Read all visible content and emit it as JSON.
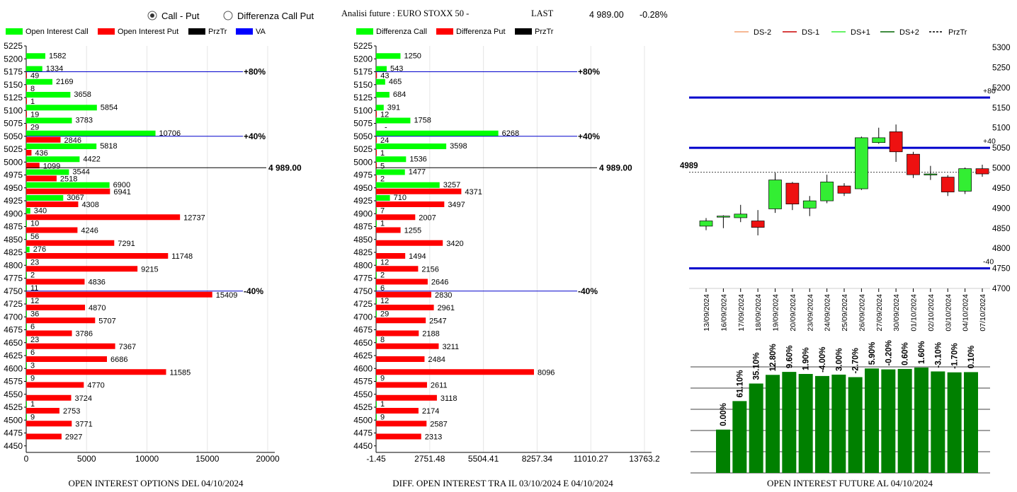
{
  "header": {
    "radio_call_put": "Call - Put",
    "radio_diff": "Differenza Call Put",
    "radio_selected": "call_put",
    "title": "Analisi future : EURO STOXX 50 -",
    "last_label": "LAST",
    "last_value": "4 989.00",
    "change": "-0.28%"
  },
  "colors": {
    "call": "#00ff00",
    "put": "#ff0000",
    "przTr": "#000000",
    "va": "#0000ff",
    "up_candle": "#33ee33",
    "down_candle": "#ee1111",
    "level_line": "#0000cc",
    "oi_future_bar": "#008000",
    "ds_minus2": "#f4a070",
    "ds_minus1": "#cc0000",
    "ds_plus1": "#33ee33",
    "ds_plus2": "#006600"
  },
  "legends": {
    "left": [
      "Open Interest Call",
      "Open Interest Put",
      "PrzTr",
      "VA"
    ],
    "middle": [
      "Differenza Call",
      "Differenza Put",
      "PrzTr"
    ],
    "right": [
      "DS-2",
      "DS-1",
      "DS+1",
      "DS+2",
      "PrzTr"
    ]
  },
  "footers": {
    "left": "OPEN INTEREST OPTIONS DEL 04/10/2024",
    "middle": "DIFF. OPEN INTEREST TRA IL 03/10/2024 E 04/10/2024",
    "right": "OPEN INTEREST FUTURE AL 04/10/2024"
  },
  "chart_data": [
    {
      "id": "oi_options",
      "type": "bar",
      "orientation": "horizontal",
      "title": "OPEN INTEREST OPTIONS DEL 04/10/2024",
      "categories": [
        "5225",
        "5200",
        "5175",
        "5150",
        "5125",
        "5100",
        "5075",
        "5050",
        "5025",
        "5000",
        "4975",
        "4950",
        "4925",
        "4900",
        "4875",
        "4850",
        "4825",
        "4800",
        "4775",
        "4750",
        "4725",
        "4700",
        "4675",
        "4650",
        "4625",
        "4600",
        "4575",
        "4550",
        "4525",
        "4500",
        "4475",
        "4450"
      ],
      "series": [
        {
          "name": "Open Interest Call",
          "values": [
            null,
            1582,
            1334,
            2169,
            3658,
            5854,
            3783,
            10706,
            5818,
            4422,
            3544,
            6900,
            3067,
            340,
            10,
            56,
            276,
            23,
            2,
            11,
            12,
            36,
            6,
            23,
            6,
            3,
            9,
            null,
            1,
            9,
            null,
            null
          ]
        },
        {
          "name": "Open Interest Put",
          "values": [
            null,
            null,
            49,
            8,
            1,
            19,
            29,
            2846,
            436,
            1099,
            2518,
            6941,
            4308,
            12737,
            4246,
            7291,
            11748,
            9215,
            4836,
            15409,
            4870,
            5707,
            3786,
            7367,
            6686,
            11585,
            4770,
            3724,
            2753,
            3771,
            2927,
            null
          ]
        }
      ],
      "xlim": [
        0,
        20000
      ],
      "x_ticks": [
        "0",
        "5000",
        "10000",
        "15000",
        "20000"
      ],
      "reference_lines": [
        {
          "label": "+80%",
          "level": "5175"
        },
        {
          "label": "+40%",
          "level": "5050"
        },
        {
          "label": "4 989.00",
          "level": 4989
        },
        {
          "label": "-40%",
          "level": "4750"
        }
      ]
    },
    {
      "id": "diff_oi",
      "type": "bar",
      "orientation": "horizontal",
      "title": "DIFF. OPEN INTEREST TRA IL 03/10/2024 E 04/10/2024",
      "categories": [
        "5225",
        "5200",
        "5175",
        "5150",
        "5125",
        "5100",
        "5075",
        "5050",
        "5025",
        "5000",
        "4975",
        "4950",
        "4925",
        "4900",
        "4875",
        "4850",
        "4825",
        "4800",
        "4775",
        "4750",
        "4725",
        "4700",
        "4675",
        "4650",
        "4625",
        "4600",
        "4575",
        "4550",
        "4525",
        "4500",
        "4475",
        "4450"
      ],
      "series": [
        {
          "name": "Differenza Call",
          "values": [
            null,
            1250,
            543,
            465,
            684,
            391,
            1758,
            6268,
            3598,
            1536,
            1477,
            3257,
            710,
            7,
            1,
            null,
            null,
            12,
            2,
            6,
            12,
            29,
            null,
            8,
            null,
            null,
            9,
            null,
            1,
            9,
            null,
            null
          ]
        },
        {
          "name": "Differenza Put",
          "values": [
            null,
            null,
            43,
            null,
            null,
            12,
            "-",
            24,
            1,
            5,
            2,
            4371,
            3497,
            2007,
            1255,
            3420,
            1494,
            2156,
            2646,
            2830,
            2961,
            2547,
            2188,
            3211,
            2484,
            8096,
            2611,
            3118,
            2174,
            2587,
            2313,
            null
          ]
        }
      ],
      "xlim": [
        -1.45,
        13763.2
      ],
      "x_ticks": [
        "-1.45",
        "2751.48",
        "5504.41",
        "8257.34",
        "11010.27",
        "13763.2"
      ],
      "reference_lines": [
        {
          "label": "+80%",
          "level": "5175"
        },
        {
          "label": "+40%",
          "level": "5050"
        },
        {
          "label": "4 989.00",
          "level": 4989
        },
        {
          "label": "-40%",
          "level": "4750"
        }
      ]
    },
    {
      "id": "candles",
      "type": "candlestick",
      "dates": [
        "13/09/2024",
        "16/09/2024",
        "17/09/2024",
        "18/09/2024",
        "19/09/2024",
        "20/09/2024",
        "23/09/2024",
        "24/09/2024",
        "25/09/2024",
        "26/09/2024",
        "27/09/2024",
        "30/09/2024",
        "01/10/2024",
        "02/10/2024",
        "03/10/2024",
        "04/10/2024",
        "07/10/2024"
      ],
      "ohlc": [
        [
          4855,
          4875,
          4845,
          4868
        ],
        [
          4878,
          4882,
          4850,
          4880
        ],
        [
          4876,
          4908,
          4865,
          4885
        ],
        [
          4868,
          4895,
          4832,
          4852
        ],
        [
          4898,
          4988,
          4888,
          4970
        ],
        [
          4962,
          4965,
          4895,
          4910
        ],
        [
          4900,
          4930,
          4880,
          4918
        ],
        [
          4918,
          4983,
          4912,
          4965
        ],
        [
          4955,
          4962,
          4930,
          4937
        ],
        [
          4948,
          5078,
          4945,
          5075
        ],
        [
          5063,
          5100,
          5060,
          5075
        ],
        [
          5090,
          5108,
          5015,
          5040
        ],
        [
          5034,
          5040,
          4975,
          4983
        ],
        [
          4985,
          5005,
          4970,
          4985
        ],
        [
          4977,
          4982,
          4930,
          4940
        ],
        [
          4942,
          5001,
          4935,
          4998
        ],
        [
          4998,
          5008,
          4978,
          4985
        ]
      ],
      "ylim": [
        4700,
        5300
      ],
      "y_ticks": [
        "5300",
        "5250",
        "5200",
        "5150",
        "5100",
        "5050",
        "5000",
        "4950",
        "4900",
        "4850",
        "4800",
        "4750",
        "4700"
      ],
      "levels": [
        {
          "value": 5175,
          "label": "+80"
        },
        {
          "value": 5050,
          "label": "+40"
        },
        {
          "value": 4750,
          "label": "-40"
        }
      ],
      "przTr": 4989,
      "przTr_label": "4989"
    },
    {
      "id": "oi_future",
      "type": "bar",
      "values": [
        190,
        315,
        392,
        430,
        443,
        434,
        425,
        431,
        420,
        458,
        454,
        456,
        462,
        445,
        441,
        442
      ],
      "labels": [
        "0.00%",
        "61.10%",
        "35.10%",
        "12.80%",
        "9.60%",
        "1.90%",
        "-4.00%",
        "3.00%",
        "-2.70%",
        "5.90%",
        "-0.20%",
        "0.60%",
        "1.60%",
        "-3.10%",
        "-1.70%",
        "0.10%"
      ]
    }
  ]
}
